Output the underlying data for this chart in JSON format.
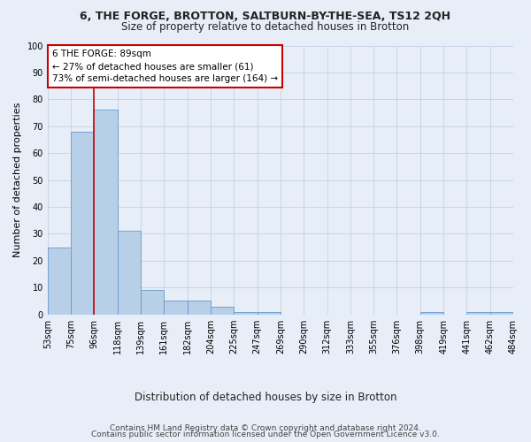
{
  "title1": "6, THE FORGE, BROTTON, SALTBURN-BY-THE-SEA, TS12 2QH",
  "title2": "Size of property relative to detached houses in Brotton",
  "xlabel": "Distribution of detached houses by size in Brotton",
  "ylabel": "Number of detached properties",
  "bar_values": [
    25,
    68,
    76,
    31,
    9,
    5,
    5,
    3,
    1,
    1,
    0,
    0,
    0,
    0,
    0,
    0,
    1,
    0,
    1,
    1
  ],
  "bin_labels": [
    "53sqm",
    "75sqm",
    "96sqm",
    "118sqm",
    "139sqm",
    "161sqm",
    "182sqm",
    "204sqm",
    "225sqm",
    "247sqm",
    "269sqm",
    "290sqm",
    "312sqm",
    "333sqm",
    "355sqm",
    "376sqm",
    "398sqm",
    "419sqm",
    "441sqm",
    "462sqm",
    "484sqm"
  ],
  "bar_color": "#b8cfe8",
  "bar_edge_color": "#6699cc",
  "property_line_color": "#cc0000",
  "annotation_text": "6 THE FORGE: 89sqm\n← 27% of detached houses are smaller (61)\n73% of semi-detached houses are larger (164) →",
  "annotation_box_color": "#ffffff",
  "annotation_box_edge": "#cc0000",
  "ylim": [
    0,
    100
  ],
  "yticks": [
    0,
    10,
    20,
    30,
    40,
    50,
    60,
    70,
    80,
    90,
    100
  ],
  "grid_color": "#c8d4e8",
  "background_color": "#e8eef8",
  "footnote1": "Contains HM Land Registry data © Crown copyright and database right 2024.",
  "footnote2": "Contains public sector information licensed under the Open Government Licence v3.0."
}
